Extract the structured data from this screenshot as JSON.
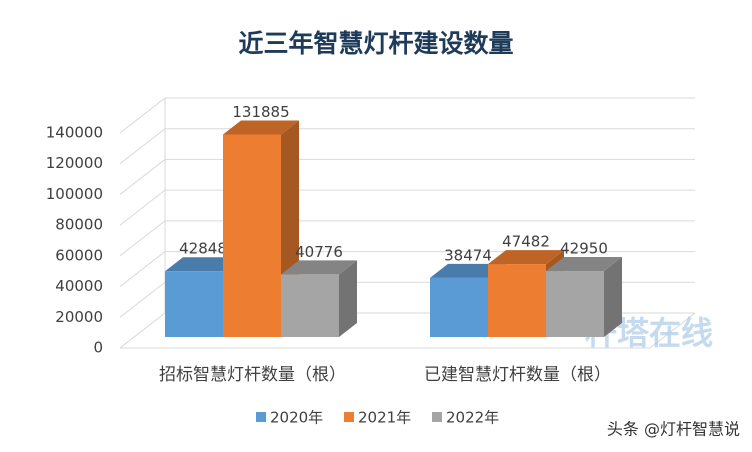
{
  "chart_data": {
    "type": "bar3d",
    "title": "近三年智慧灯杆建设数量",
    "categories": [
      "招标智慧灯杆数量（根）",
      "已建智慧灯杆数量（根）"
    ],
    "series": [
      {
        "name": "2020年",
        "color": "#5b9bd5",
        "values": [
          42848,
          38474
        ]
      },
      {
        "name": "2021年",
        "color": "#ed7d31",
        "values": [
          131885,
          47482
        ]
      },
      {
        "name": "2022年",
        "color": "#a5a5a5",
        "values": [
          40776,
          42950
        ]
      }
    ],
    "ylim": [
      0,
      140000
    ],
    "yticks": [
      0,
      20000,
      40000,
      60000,
      80000,
      100000,
      120000,
      140000
    ],
    "grid": true,
    "legend": "bottom"
  },
  "watermark": "杆塔在线",
  "credit": "头条 @灯杆智慧说"
}
